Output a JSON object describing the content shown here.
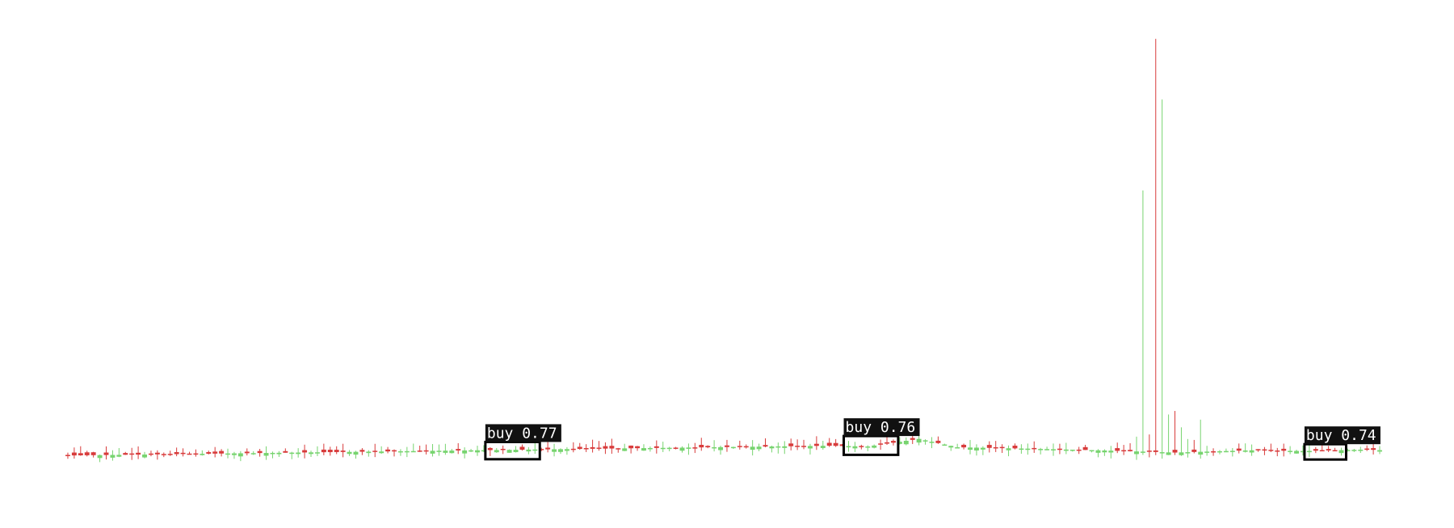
{
  "chart_data": {
    "type": "candlestick",
    "grid": false,
    "axes_visible": false,
    "colors": {
      "up": "#77d46f",
      "down": "#d83b3b",
      "box": "#000000",
      "label_bg": "#111111",
      "label_text": "#ffffff"
    },
    "ylim": [
      0,
      650
    ],
    "segments": [
      [
        120,
        83
      ],
      [
        6,
        82
      ],
      [
        8,
        92
      ],
      [
        6,
        81
      ],
      [
        12,
        79
      ],
      [
        10,
        77
      ],
      [
        12,
        74
      ],
      [
        12,
        77
      ],
      [
        8,
        76
      ],
      [
        10,
        78
      ],
      [
        12,
        73
      ],
      [
        8,
        72
      ],
      [
        14,
        76
      ],
      [
        10,
        74
      ],
      [
        12,
        78
      ],
      [
        8,
        80
      ],
      [
        12,
        84
      ],
      [
        10,
        82
      ],
      [
        14,
        80
      ],
      [
        14,
        76
      ],
      [
        8,
        74
      ],
      [
        10,
        78
      ],
      [
        16,
        82
      ],
      [
        12,
        86
      ],
      [
        10,
        82
      ],
      [
        6,
        74
      ],
      [
        14,
        79
      ],
      [
        10,
        82
      ],
      [
        12,
        80
      ],
      [
        10,
        74
      ],
      [
        14,
        72
      ],
      [
        12,
        74
      ],
      [
        14,
        78
      ],
      [
        12,
        82
      ],
      [
        14,
        79
      ],
      [
        12,
        74
      ],
      [
        14,
        70
      ],
      [
        10,
        68
      ],
      [
        14,
        72
      ],
      [
        10,
        76
      ],
      [
        12,
        74
      ],
      [
        14,
        79
      ],
      [
        14,
        82
      ],
      [
        12,
        78
      ],
      [
        12,
        76
      ],
      [
        18,
        74
      ],
      [
        12,
        73
      ],
      [
        18,
        72
      ],
      [
        14,
        74
      ],
      [
        16,
        72
      ],
      [
        14,
        73
      ],
      [
        18,
        75
      ],
      [
        14,
        82
      ],
      [
        16,
        86
      ],
      [
        12,
        84
      ],
      [
        14,
        82
      ],
      [
        12,
        76
      ],
      [
        14,
        72
      ],
      [
        14,
        70
      ],
      [
        10,
        66
      ],
      [
        12,
        80
      ],
      [
        12,
        88
      ],
      [
        12,
        86
      ],
      [
        14,
        90
      ],
      [
        12,
        92
      ],
      [
        14,
        94
      ],
      [
        12,
        95
      ],
      [
        10,
        92
      ],
      [
        12,
        90
      ],
      [
        14,
        88
      ],
      [
        8,
        78
      ],
      [
        8,
        60
      ],
      [
        10,
        58
      ],
      [
        12,
        66
      ],
      [
        10,
        70
      ],
      [
        16,
        74
      ],
      [
        14,
        76
      ],
      [
        12,
        78
      ],
      [
        14,
        80
      ],
      [
        14,
        82
      ],
      [
        12,
        80
      ],
      [
        16,
        82
      ],
      [
        12,
        84
      ],
      [
        14,
        86
      ],
      [
        12,
        88
      ],
      [
        14,
        86
      ],
      [
        12,
        82
      ],
      [
        14,
        80
      ],
      [
        14,
        78
      ],
      [
        14,
        76
      ],
      [
        16,
        72
      ],
      [
        14,
        78
      ],
      [
        14,
        82
      ],
      [
        16,
        88
      ],
      [
        12,
        90
      ],
      [
        14,
        92
      ],
      [
        12,
        95
      ],
      [
        14,
        92
      ],
      [
        14,
        88
      ],
      [
        12,
        86
      ],
      [
        14,
        84
      ],
      [
        12,
        82
      ],
      [
        14,
        84
      ],
      [
        16,
        80
      ],
      [
        16,
        76
      ],
      [
        14,
        72
      ],
      [
        14,
        75
      ],
      [
        12,
        82
      ],
      [
        14,
        84
      ],
      [
        12,
        80
      ],
      [
        16,
        78
      ],
      [
        14,
        80
      ],
      [
        16,
        82
      ],
      [
        14,
        84
      ],
      [
        12,
        86
      ],
      [
        14,
        84
      ],
      [
        16,
        86
      ],
      [
        14,
        88
      ],
      [
        16,
        90
      ],
      [
        12,
        92
      ],
      [
        12,
        94
      ],
      [
        14,
        96
      ],
      [
        12,
        95
      ],
      [
        14,
        94
      ],
      [
        12,
        92
      ],
      [
        8,
        96
      ],
      [
        8,
        108
      ],
      [
        6,
        120
      ],
      [
        6,
        145
      ],
      [
        6,
        185
      ],
      [
        6,
        280
      ],
      [
        6,
        480
      ],
      [
        6,
        490
      ],
      [
        6,
        520
      ],
      [
        6,
        470
      ],
      [
        6,
        400
      ],
      [
        6,
        330
      ],
      [
        6,
        260
      ],
      [
        8,
        190
      ],
      [
        8,
        150
      ],
      [
        10,
        142
      ],
      [
        10,
        135
      ],
      [
        12,
        120
      ],
      [
        10,
        106
      ],
      [
        12,
        104
      ],
      [
        12,
        92
      ],
      [
        12,
        96
      ],
      [
        10,
        100
      ],
      [
        12,
        110
      ],
      [
        10,
        118
      ],
      [
        10,
        130
      ],
      [
        8,
        138
      ],
      [
        10,
        145
      ],
      [
        8,
        150
      ],
      [
        8,
        140
      ],
      [
        8,
        120
      ],
      [
        8,
        108
      ],
      [
        8,
        102
      ],
      [
        8,
        96
      ],
      [
        8,
        92
      ]
    ],
    "annotations": [
      {
        "label": "buy 0.77",
        "start_index": 66,
        "end_index": 73
      },
      {
        "label": "buy 0.76",
        "start_index": 122,
        "end_index": 129
      },
      {
        "label": "buy 0.74",
        "start_index": 194,
        "end_index": 199
      }
    ]
  }
}
